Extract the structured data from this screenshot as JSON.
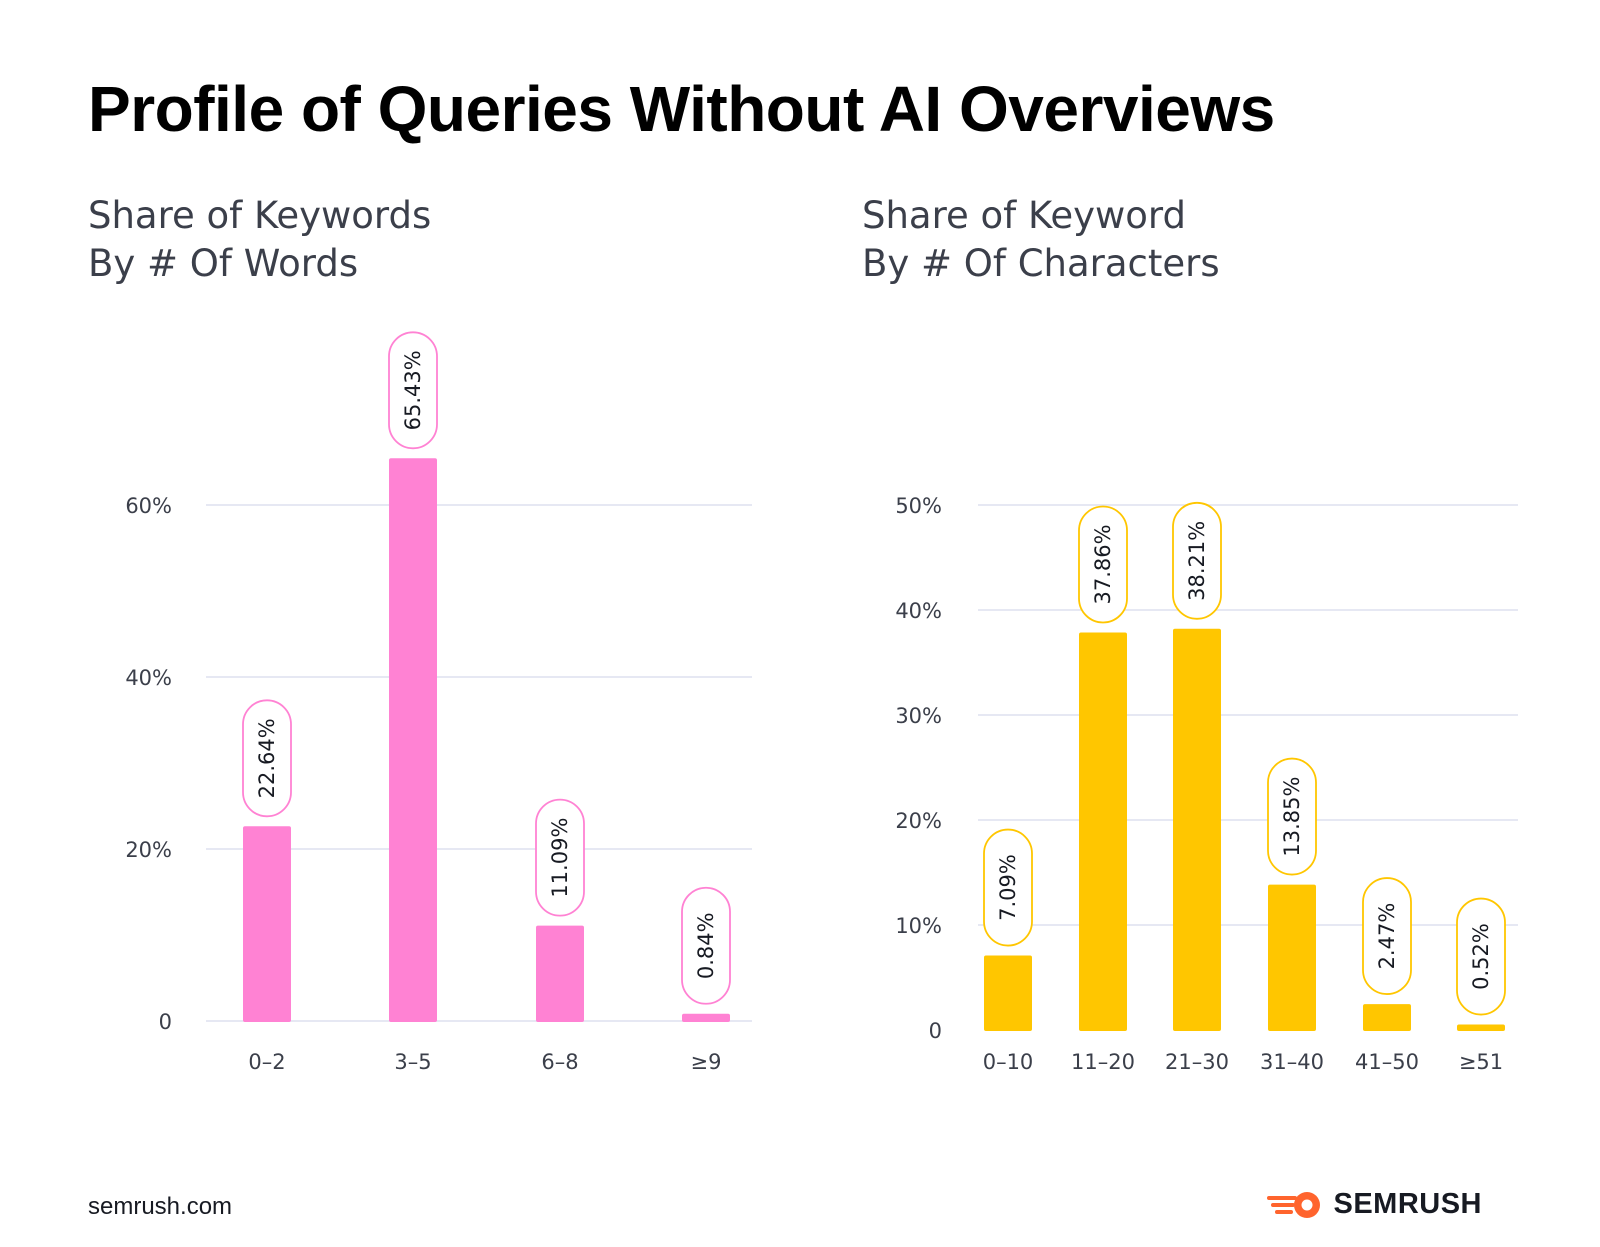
{
  "title": "Profile of Queries Without AI Overviews",
  "footer": {
    "url": "semrush.com",
    "brand": "SEMRUSH"
  },
  "colors": {
    "left_bar": "#ff82d3",
    "right_bar": "#ffc600",
    "grid": "#dde1ef",
    "logo": "#ff642d"
  },
  "chart_data": [
    {
      "type": "bar",
      "title": [
        "Share of Keywords",
        "By # Of Words"
      ],
      "xlabel": "",
      "ylabel": "",
      "categories": [
        "0–2",
        "3–5",
        "6–8",
        "≥9"
      ],
      "values": [
        22.64,
        65.43,
        11.09,
        0.84
      ],
      "value_labels": [
        "22.64%",
        "65.43%",
        "11.09%",
        "0.84%"
      ],
      "ylim": [
        0,
        60
      ],
      "yticks": [
        0,
        20,
        40,
        60
      ],
      "ytick_labels": [
        "0",
        "20%",
        "40%",
        "60%"
      ],
      "grid": true
    },
    {
      "type": "bar",
      "title": [
        "Share of Keyword",
        "By # Of Characters"
      ],
      "xlabel": "",
      "ylabel": "",
      "categories": [
        "0–10",
        "11–20",
        "21–30",
        "31–40",
        "41–50",
        "≥51"
      ],
      "values": [
        7.09,
        37.86,
        38.21,
        13.85,
        2.47,
        0.52
      ],
      "value_labels": [
        "7.09%",
        "37.86%",
        "38.21%",
        "13.85%",
        "2.47%",
        "0.52%"
      ],
      "ylim": [
        0,
        50
      ],
      "yticks": [
        0,
        10,
        20,
        30,
        40,
        50
      ],
      "ytick_labels": [
        "0",
        "10%",
        "20%",
        "30%",
        "40%",
        "50%"
      ],
      "grid": true
    }
  ]
}
